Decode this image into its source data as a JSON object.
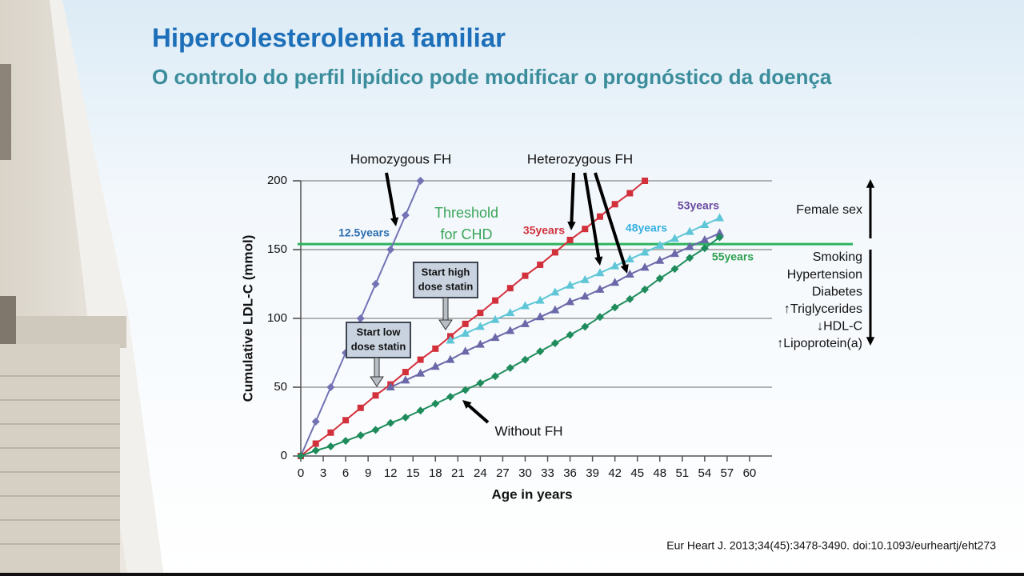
{
  "header": {
    "title": "Hipercolesterolemia familiar",
    "subtitle": "O controlo do perfil lipídico pode modificar o prognóstico da doença"
  },
  "chart_data": {
    "type": "line",
    "xlabel": "Age in years",
    "ylabel": "Cumulative LDL-C (mmol)",
    "xlim": [
      0,
      63
    ],
    "ylim": [
      0,
      200
    ],
    "xticks": [
      0,
      3,
      6,
      9,
      12,
      15,
      18,
      21,
      24,
      27,
      30,
      33,
      36,
      39,
      42,
      45,
      48,
      51,
      54,
      57,
      60
    ],
    "yticks": [
      0,
      50,
      100,
      150,
      200
    ],
    "grid": true,
    "series": [
      {
        "color": "#7272b4",
        "marker": "diamond",
        "x": [
          0,
          2,
          4,
          6,
          8,
          10,
          12,
          14,
          16
        ],
        "values": [
          0,
          25,
          50,
          75,
          100,
          125,
          150,
          175,
          200
        ]
      },
      {
        "color": "#d2313c",
        "marker": "square",
        "x": [
          0,
          2,
          4,
          6,
          8,
          10,
          12,
          14,
          16,
          18,
          20,
          22,
          24,
          26,
          28,
          30,
          32,
          34,
          36,
          38,
          40,
          42,
          44,
          46
        ],
        "values": [
          0,
          9,
          17,
          26,
          35,
          44,
          52,
          61,
          70,
          78,
          87,
          96,
          104,
          113,
          122,
          131,
          139,
          148,
          157,
          165,
          174,
          183,
          191,
          200
        ]
      },
      {
        "color": "#5ec6d6",
        "marker": "triangle",
        "x": [
          20,
          22,
          24,
          26,
          28,
          30,
          32,
          34,
          36,
          38,
          40,
          42,
          44,
          46,
          48,
          50,
          52,
          54,
          56
        ],
        "values": [
          84,
          89,
          94,
          99,
          104,
          109,
          113,
          119,
          124,
          128,
          133,
          138,
          143,
          148,
          153,
          158,
          163,
          168,
          173
        ]
      },
      {
        "color": "#6a68a8",
        "marker": "triangle",
        "x": [
          12,
          14,
          16,
          18,
          20,
          22,
          24,
          26,
          28,
          30,
          32,
          34,
          36,
          38,
          40,
          42,
          44,
          46,
          48,
          50,
          52,
          54,
          56
        ],
        "values": [
          50,
          55,
          60,
          65,
          70,
          76,
          81,
          86,
          91,
          96,
          101,
          106,
          112,
          116,
          121,
          126,
          132,
          137,
          142,
          147,
          152,
          157,
          162
        ]
      },
      {
        "color": "#1f8c5c",
        "marker": "diamond",
        "x": [
          0,
          2,
          4,
          6,
          8,
          10,
          12,
          14,
          16,
          18,
          20,
          22,
          24,
          26,
          28,
          30,
          32,
          34,
          36,
          38,
          40,
          42,
          44,
          46,
          48,
          50,
          52,
          54,
          56
        ],
        "values": [
          0,
          4,
          7,
          11,
          15,
          19,
          24,
          28,
          33,
          38,
          43,
          48,
          53,
          58,
          64,
          70,
          76,
          82,
          88,
          94,
          101,
          108,
          114,
          121,
          129,
          136,
          144,
          151,
          159
        ]
      }
    ],
    "threshold": {
      "value": 154,
      "color": "#2eb360",
      "label": [
        "Threshold",
        "for CHD"
      ]
    },
    "annotations": [
      "Homozygous FH",
      "Heterozygous FH",
      "Without FH"
    ],
    "statin_boxes": [
      [
        "Start high",
        "dose statin"
      ],
      [
        "Start low",
        "dose statin"
      ]
    ],
    "age_labels": [
      {
        "text": "12.5years",
        "color": "#2e6fb0"
      },
      {
        "text": "35years",
        "color": "#d2313c"
      },
      {
        "text": "48years",
        "color": "#35aee0"
      },
      {
        "text": "53years",
        "color": "#6a48a0"
      },
      {
        "text": "55years",
        "color": "#2ea050"
      }
    ],
    "risk_up": "Female sex",
    "risk_down": [
      "Smoking",
      "Hypertension",
      "Diabetes",
      "↑Triglycerides",
      "↓HDL-C",
      "↑Lipoprotein(a)"
    ]
  },
  "citation": "Eur Heart J. 2013;34(45):3478-3490. doi:10.1093/eurheartj/eht273"
}
